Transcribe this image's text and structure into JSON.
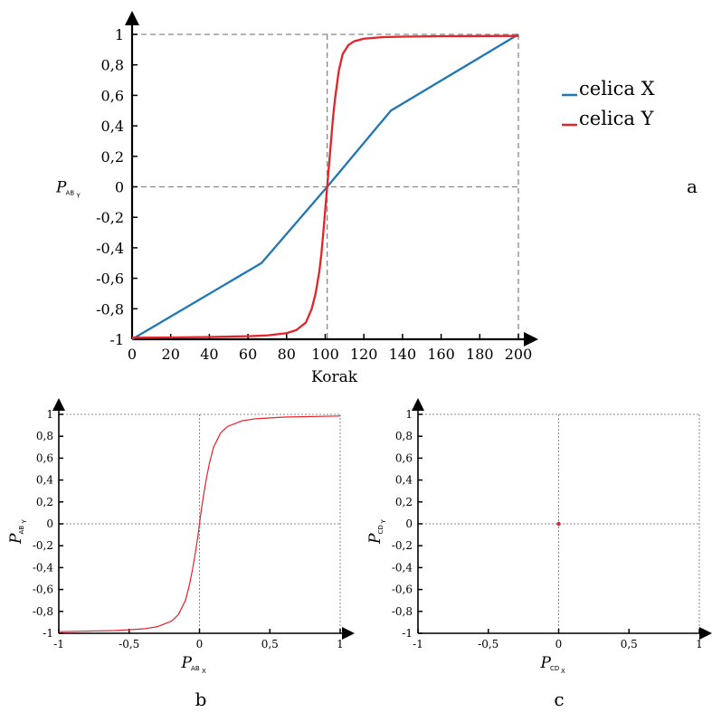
{
  "chart_data": [
    {
      "panel": "a",
      "type": "line",
      "xlabel": "Korak",
      "ylabel": {
        "main": "P",
        "sub": "AB",
        "subsub": "Y"
      },
      "xlim": [
        0,
        200
      ],
      "ylim": [
        -1,
        1
      ],
      "x_ticks": [
        "0",
        "20",
        "40",
        "60",
        "80",
        "100",
        "120",
        "140",
        "160",
        "180",
        "200"
      ],
      "y_ticks": [
        "-1",
        "-0,8",
        "-0,6",
        "-0,4",
        "-0,2",
        "0",
        "0,2",
        "0,4",
        "0,6",
        "0,8",
        "1"
      ],
      "ref_lines": {
        "x": 101,
        "y": 0
      },
      "legend_position": "right",
      "series": [
        {
          "name": "celica X",
          "color": "#1f77b4",
          "x": [
            0,
            67,
            101,
            134,
            200
          ],
          "y": [
            -1,
            -0.5,
            0,
            0.5,
            1
          ]
        },
        {
          "name": "celica Y",
          "color": "#e3242b",
          "x": [
            0,
            20,
            40,
            60,
            70,
            80,
            85,
            90,
            93,
            95,
            97,
            98,
            99,
            100,
            101,
            102,
            103,
            104,
            105,
            107,
            109,
            112,
            115,
            120,
            130,
            140,
            160,
            200
          ],
          "y": [
            -0.99,
            -0.988,
            -0.985,
            -0.98,
            -0.975,
            -0.96,
            -0.94,
            -0.89,
            -0.8,
            -0.7,
            -0.55,
            -0.44,
            -0.3,
            -0.15,
            0,
            0.15,
            0.3,
            0.45,
            0.57,
            0.76,
            0.87,
            0.93,
            0.955,
            0.972,
            0.982,
            0.985,
            0.988,
            0.99
          ]
        }
      ]
    },
    {
      "panel": "b",
      "type": "line",
      "xlabel": {
        "main": "P",
        "sub": "AB",
        "subsub": "X"
      },
      "ylabel": {
        "main": "P",
        "sub": "AB",
        "subsub": "Y"
      },
      "xlim": [
        -1,
        1
      ],
      "ylim": [
        -1,
        1
      ],
      "x_ticks": [
        "-1",
        "-0,5",
        "0",
        "0,5",
        "1"
      ],
      "y_ticks": [
        "-1",
        "-0,8",
        "-0,6",
        "-0,4",
        "-0,2",
        "0",
        "0,2",
        "0,4",
        "0,6",
        "0,8",
        "1"
      ],
      "series": [
        {
          "color": "#e3242b",
          "x": [
            -1,
            -0.6,
            -0.4,
            -0.3,
            -0.2,
            -0.15,
            -0.1,
            -0.07,
            -0.05,
            -0.03,
            -0.01,
            0,
            0.01,
            0.03,
            0.05,
            0.07,
            0.1,
            0.15,
            0.2,
            0.3,
            0.4,
            0.6,
            1
          ],
          "y": [
            -0.985,
            -0.975,
            -0.96,
            -0.94,
            -0.89,
            -0.83,
            -0.7,
            -0.55,
            -0.42,
            -0.27,
            -0.1,
            0,
            0.1,
            0.27,
            0.42,
            0.55,
            0.7,
            0.83,
            0.89,
            0.94,
            0.96,
            0.975,
            0.985
          ]
        }
      ]
    },
    {
      "panel": "c",
      "type": "scatter",
      "xlabel": {
        "main": "P",
        "sub": "CD",
        "subsub": "X"
      },
      "ylabel": {
        "main": "P",
        "sub": "CD",
        "subsub": "Y"
      },
      "xlim": [
        -1,
        1
      ],
      "ylim": [
        -1,
        1
      ],
      "x_ticks": [
        "-1",
        "-0,5",
        "0",
        "0,5",
        "1"
      ],
      "y_ticks": [
        "-1",
        "-0,8",
        "-0,6",
        "-0,4",
        "-0,2",
        "0",
        "0,2",
        "0,4",
        "0,6",
        "0,8",
        "1"
      ],
      "series": [
        {
          "color": "#e3242b",
          "x": [
            0
          ],
          "y": [
            0
          ]
        }
      ]
    }
  ]
}
